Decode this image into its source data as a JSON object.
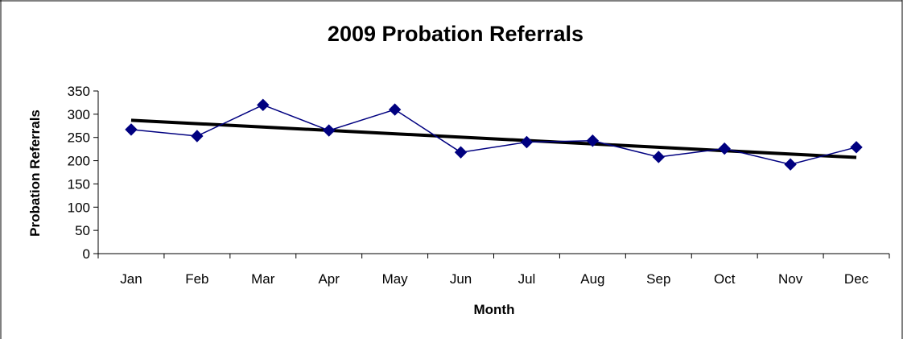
{
  "chart_data": {
    "type": "line",
    "title": "2009 Probation Referrals",
    "xlabel": "Month",
    "ylabel": "Probation Referrals",
    "categories": [
      "Jan",
      "Feb",
      "Mar",
      "Apr",
      "May",
      "Jun",
      "Jul",
      "Aug",
      "Sep",
      "Oct",
      "Nov",
      "Dec"
    ],
    "series": [
      {
        "values": [
          267,
          253,
          320,
          265,
          310,
          218,
          240,
          243,
          208,
          226,
          192,
          229
        ],
        "color": "#000080",
        "marker": "diamond"
      }
    ],
    "trendline": {
      "type": "linear",
      "start": 287,
      "end": 207,
      "color": "#000000"
    },
    "yticks": [
      0,
      50,
      100,
      150,
      200,
      250,
      300,
      350
    ],
    "ylim": [
      0,
      350
    ],
    "grid": false,
    "legend": "none"
  }
}
